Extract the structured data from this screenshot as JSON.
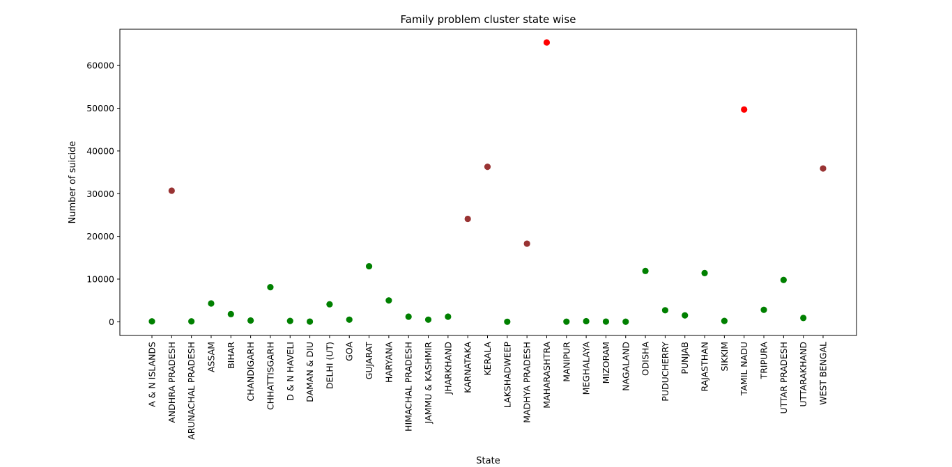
{
  "chart_data": {
    "type": "scatter",
    "title": "Family problem cluster state wise",
    "xlabel": "State",
    "ylabel": "Number of suicide",
    "ylim": [
      -3200,
      68500
    ],
    "yticks": [
      0,
      10000,
      20000,
      30000,
      40000,
      50000,
      60000
    ],
    "grid": false,
    "legend": "none",
    "cluster_colors": {
      "low": "#008000",
      "medium": "#993333",
      "high": "#ff0000"
    },
    "points": [
      {
        "state": "A & N ISLANDS",
        "value": 100,
        "cluster": "low"
      },
      {
        "state": "ANDHRA PRADESH",
        "value": 30700,
        "cluster": "medium"
      },
      {
        "state": "ARUNACHAL PRADESH",
        "value": 100,
        "cluster": "low"
      },
      {
        "state": "ASSAM",
        "value": 4300,
        "cluster": "low"
      },
      {
        "state": "BIHAR",
        "value": 1800,
        "cluster": "low"
      },
      {
        "state": "CHANDIGARH",
        "value": 300,
        "cluster": "low"
      },
      {
        "state": "CHHATTISGARH",
        "value": 8100,
        "cluster": "low"
      },
      {
        "state": "D & N HAVELI",
        "value": 200,
        "cluster": "low"
      },
      {
        "state": "DAMAN & DIU",
        "value": 50,
        "cluster": "low"
      },
      {
        "state": "DELHI (UT)",
        "value": 4100,
        "cluster": "low"
      },
      {
        "state": "GOA",
        "value": 500,
        "cluster": "low"
      },
      {
        "state": "GUJARAT",
        "value": 13000,
        "cluster": "low"
      },
      {
        "state": "HARYANA",
        "value": 5000,
        "cluster": "low"
      },
      {
        "state": "HIMACHAL PRADESH",
        "value": 1200,
        "cluster": "low"
      },
      {
        "state": "JAMMU & KASHMIR",
        "value": 500,
        "cluster": "low"
      },
      {
        "state": "JHARKHAND",
        "value": 1200,
        "cluster": "low"
      },
      {
        "state": "KARNATAKA",
        "value": 24100,
        "cluster": "medium"
      },
      {
        "state": "KERALA",
        "value": 36300,
        "cluster": "medium"
      },
      {
        "state": "LAKSHADWEEP",
        "value": 10,
        "cluster": "low"
      },
      {
        "state": "MADHYA PRADESH",
        "value": 18300,
        "cluster": "medium"
      },
      {
        "state": "MAHARASHTRA",
        "value": 65400,
        "cluster": "high"
      },
      {
        "state": "MANIPUR",
        "value": 30,
        "cluster": "low"
      },
      {
        "state": "MEGHALAYA",
        "value": 150,
        "cluster": "low"
      },
      {
        "state": "MIZORAM",
        "value": 50,
        "cluster": "low"
      },
      {
        "state": "NAGALAND",
        "value": 20,
        "cluster": "low"
      },
      {
        "state": "ODISHA",
        "value": 11900,
        "cluster": "low"
      },
      {
        "state": "PUDUCHERRY",
        "value": 2700,
        "cluster": "low"
      },
      {
        "state": "PUNJAB",
        "value": 1500,
        "cluster": "low"
      },
      {
        "state": "RAJASTHAN",
        "value": 11400,
        "cluster": "low"
      },
      {
        "state": "SIKKIM",
        "value": 200,
        "cluster": "low"
      },
      {
        "state": "TAMIL NADU",
        "value": 49700,
        "cluster": "high"
      },
      {
        "state": "TRIPURA",
        "value": 2800,
        "cluster": "low"
      },
      {
        "state": "UTTAR PRADESH",
        "value": 9800,
        "cluster": "low"
      },
      {
        "state": "UTTARAKHAND",
        "value": 900,
        "cluster": "low"
      },
      {
        "state": "WEST BENGAL",
        "value": 35900,
        "cluster": "medium"
      }
    ]
  }
}
